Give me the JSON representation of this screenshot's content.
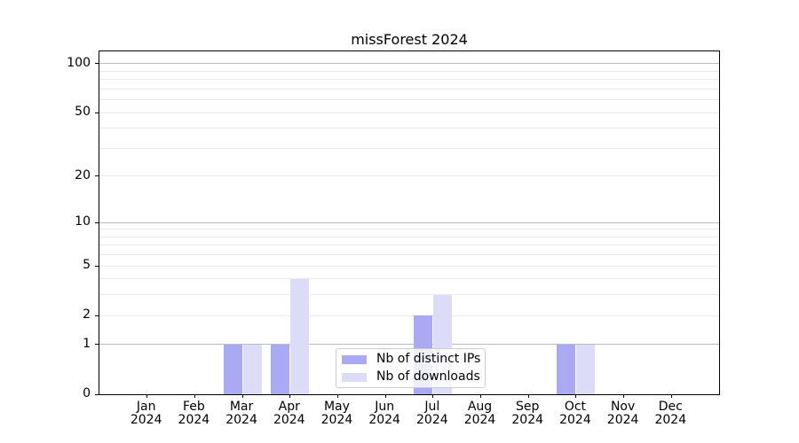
{
  "chart_data": {
    "type": "bar",
    "title": "missForest 2024",
    "categories": [
      "Jan",
      "Feb",
      "Mar",
      "Apr",
      "May",
      "Jun",
      "Jul",
      "Aug",
      "Sep",
      "Oct",
      "Nov",
      "Dec"
    ],
    "category_sub_label": "2024",
    "series": [
      {
        "name": "Nb of distinct IPs",
        "color": "#a9a9f4",
        "values": [
          0,
          0,
          1,
          1,
          0,
          0,
          2,
          0,
          0,
          1,
          0,
          0
        ]
      },
      {
        "name": "Nb of downloads",
        "color": "#dcdcf7",
        "values": [
          0,
          0,
          1,
          4,
          0,
          0,
          3,
          0,
          0,
          1,
          0,
          0
        ]
      }
    ],
    "yscale": "log1p",
    "ylim": [
      0,
      119
    ],
    "ytick_labels": [
      "0",
      "1",
      "2",
      "5",
      "10",
      "20",
      "50",
      "100"
    ],
    "ytick_values": [
      0,
      1,
      2,
      5,
      10,
      20,
      50,
      100
    ],
    "gridlines": {
      "major_values": [
        1,
        10,
        100
      ],
      "minor_values": [
        2,
        3,
        4,
        5,
        6,
        7,
        8,
        9,
        20,
        30,
        40,
        50,
        60,
        70,
        80,
        90
      ],
      "major_color": "#bbbbbb",
      "minor_color": "#eaeaea"
    },
    "legend": {
      "position": "lower center"
    },
    "xlabel": "",
    "ylabel": ""
  }
}
